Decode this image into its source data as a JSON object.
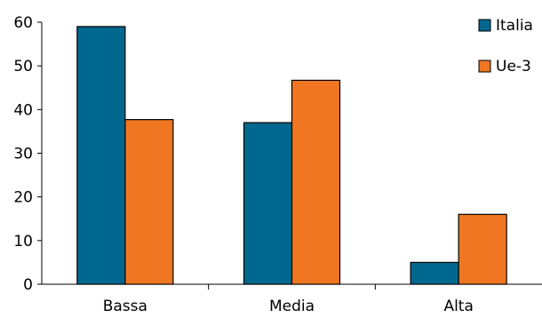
{
  "chart_data": {
    "type": "bar",
    "categories": [
      "Bassa",
      "Media",
      "Alta"
    ],
    "series": [
      {
        "name": "Italia",
        "values": [
          59,
          37,
          5
        ],
        "color": "#00688f"
      },
      {
        "name": "Ue-3",
        "values": [
          37.7,
          46.7,
          16
        ],
        "color": "#f07622"
      }
    ],
    "title": "",
    "xlabel": "",
    "ylabel": "",
    "ylim": [
      0,
      60
    ],
    "yticks": [
      0,
      10,
      20,
      30,
      40,
      50,
      60
    ],
    "grid": false,
    "legend_position": "top-right"
  }
}
